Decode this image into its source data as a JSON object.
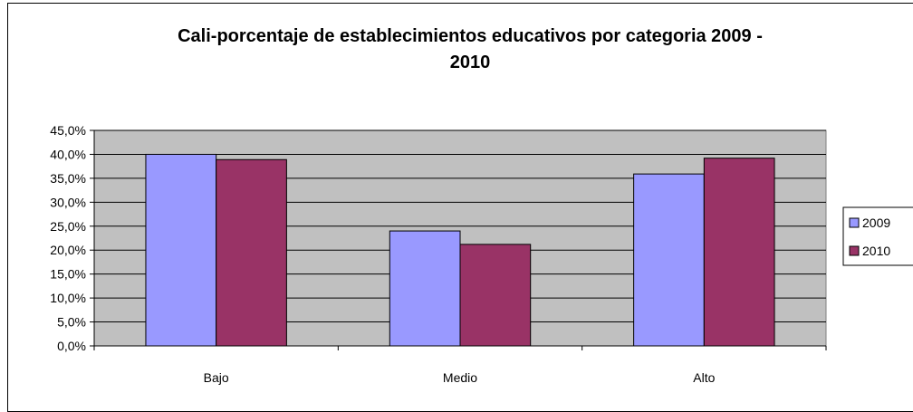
{
  "chart_data": {
    "type": "bar",
    "title_line1": "Cali-porcentaje de establecimientos educativos por categoria 2009 -",
    "title_line2": "2010",
    "categories": [
      "Bajo",
      "Medio",
      "Alto"
    ],
    "series": [
      {
        "name": "2009",
        "values": [
          40.0,
          24.0,
          35.9
        ],
        "color": "#9999FF"
      },
      {
        "name": "2010",
        "values": [
          38.9,
          21.2,
          39.2
        ],
        "color": "#993366"
      }
    ],
    "ylim": [
      0,
      45
    ],
    "y_ticks": [
      "0,0%",
      "5,0%",
      "10,0%",
      "15,0%",
      "20,0%",
      "25,0%",
      "30,0%",
      "35,0%",
      "40,0%",
      "45,0%"
    ],
    "grid": true,
    "plot_background": "#C0C0C0",
    "legend_position": "right"
  }
}
